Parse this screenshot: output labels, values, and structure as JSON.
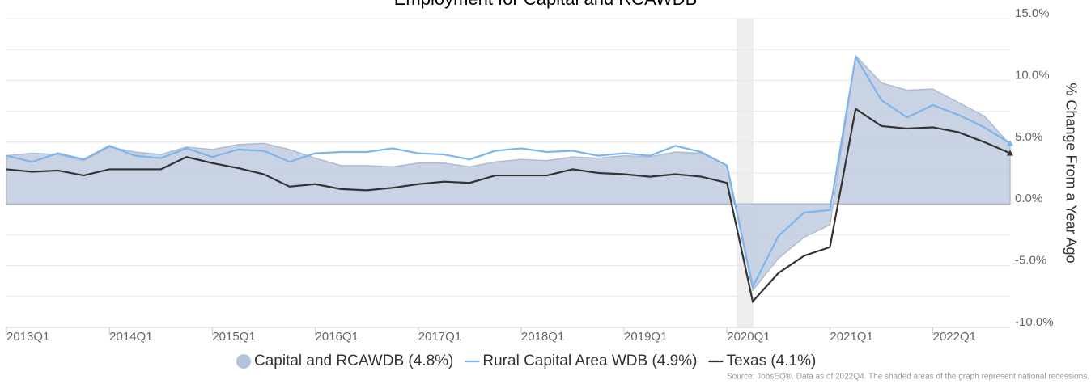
{
  "chart_data": {
    "type": "line",
    "title": "Employment for Capital and RCAWDB",
    "y_axis_label": "% Change From a Year Ago",
    "source": "Source: JobsEQ®. Data as of 2022Q4. The shaded areas of the graph represent national recessions.",
    "categories": [
      "2013Q1",
      null,
      null,
      null,
      "2014Q1",
      null,
      null,
      null,
      "2015Q1",
      null,
      null,
      null,
      "2016Q1",
      null,
      null,
      null,
      "2017Q1",
      null,
      null,
      null,
      "2018Q1",
      null,
      null,
      null,
      "2019Q1",
      null,
      null,
      null,
      "2020Q1",
      null,
      null,
      null,
      "2021Q1",
      null,
      null,
      null,
      "2022Q1",
      null,
      null,
      null
    ],
    "series": [
      {
        "name": "Capital and RCAWDB (4.8%)",
        "kind": "area",
        "color": "#c3cee0",
        "values": [
          3.9,
          4.1,
          4.0,
          3.5,
          4.6,
          4.2,
          4.0,
          4.6,
          4.4,
          4.8,
          4.9,
          4.4,
          3.7,
          3.1,
          3.1,
          3.0,
          3.3,
          3.3,
          3.0,
          3.4,
          3.6,
          3.5,
          3.8,
          3.7,
          3.9,
          3.8,
          4.2,
          4.1,
          3.1,
          -7.0,
          -4.4,
          -2.7,
          -1.7,
          12.0,
          9.8,
          9.2,
          9.3,
          8.2,
          7.1,
          4.8
        ]
      },
      {
        "name": "Rural Capital Area WDB (4.9%)",
        "kind": "line",
        "color": "#7cb5ec",
        "values": [
          3.9,
          3.4,
          4.1,
          3.6,
          4.7,
          3.9,
          3.7,
          4.5,
          3.8,
          4.4,
          4.3,
          3.4,
          4.1,
          4.2,
          4.2,
          4.5,
          4.1,
          4.0,
          3.6,
          4.3,
          4.5,
          4.2,
          4.3,
          3.9,
          4.1,
          3.9,
          4.7,
          4.2,
          3.1,
          -6.7,
          -2.6,
          -0.7,
          -0.5,
          11.9,
          8.4,
          7.0,
          8.0,
          7.2,
          6.2,
          4.9
        ]
      },
      {
        "name": "Texas (4.1%)",
        "kind": "line",
        "color": "#333333",
        "values": [
          2.8,
          2.6,
          2.7,
          2.3,
          2.8,
          2.8,
          2.8,
          3.8,
          3.3,
          2.9,
          2.4,
          1.4,
          1.6,
          1.2,
          1.1,
          1.3,
          1.6,
          1.8,
          1.7,
          2.3,
          2.3,
          2.3,
          2.8,
          2.5,
          2.4,
          2.2,
          2.4,
          2.2,
          1.7,
          -7.9,
          -5.6,
          -4.2,
          -3.5,
          7.7,
          6.3,
          6.1,
          6.2,
          5.8,
          5.0,
          4.1
        ]
      }
    ],
    "ylim": [
      -10,
      15
    ],
    "yticks": [
      {
        "value": -10,
        "label": "-10.0%"
      },
      {
        "value": -5,
        "label": "-5.0%"
      },
      {
        "value": 0,
        "label": "0.0%"
      },
      {
        "value": 5,
        "label": "5.0%"
      },
      {
        "value": 10,
        "label": "10.0%"
      },
      {
        "value": 15,
        "label": "15.0%"
      }
    ],
    "ygrid": [
      -7.5,
      -2.5,
      2.5,
      7.5,
      12.5
    ],
    "grid": true
  }
}
